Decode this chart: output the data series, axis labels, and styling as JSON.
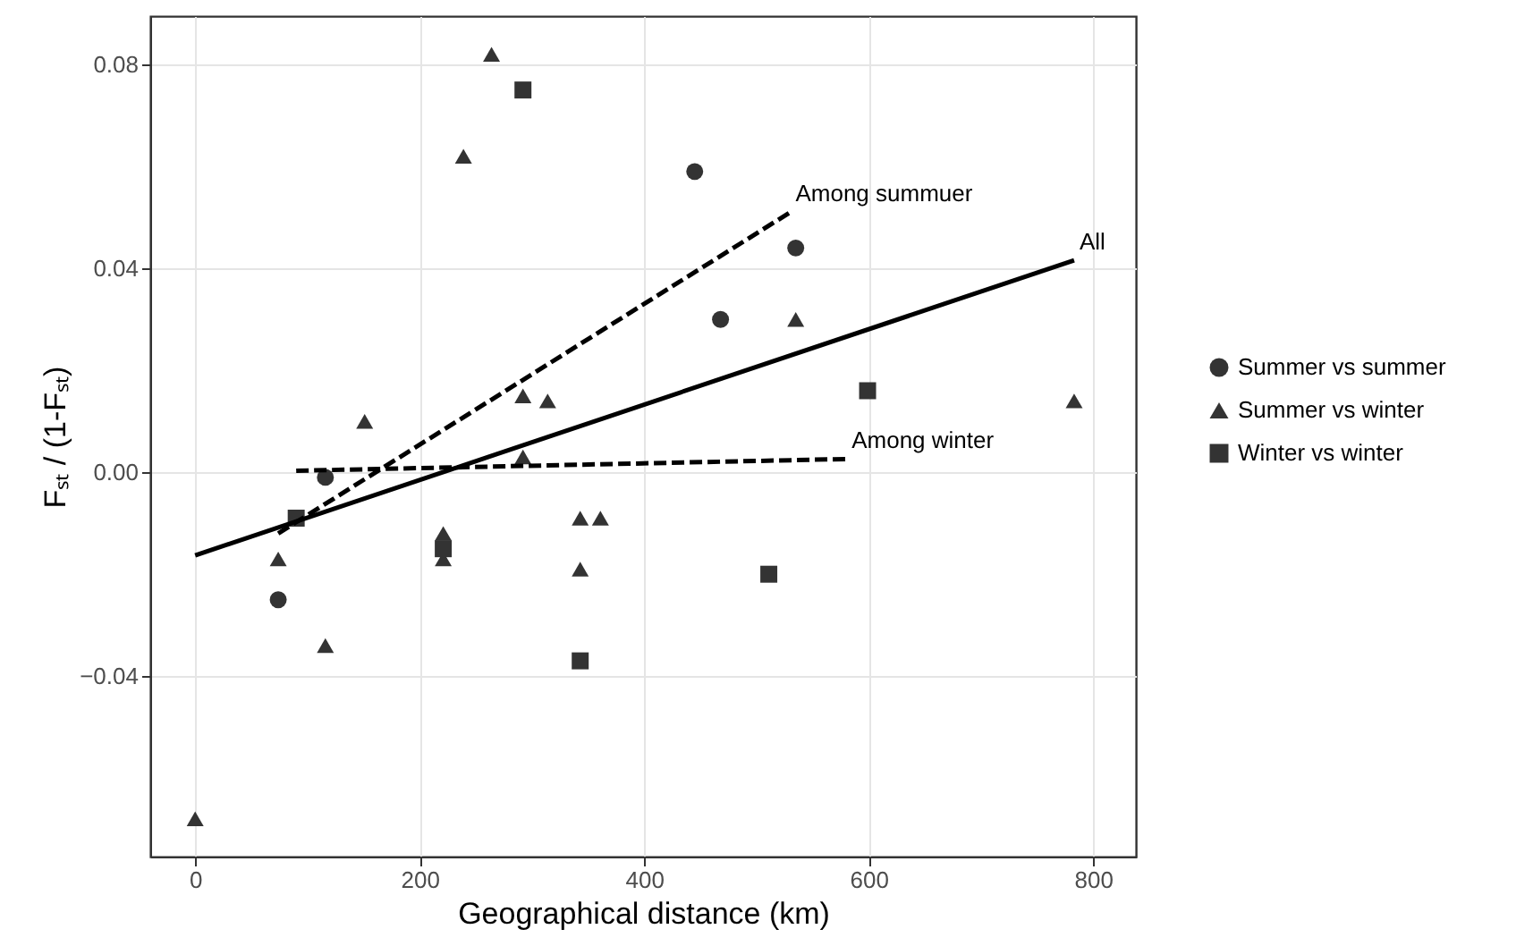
{
  "chart_data": {
    "type": "scatter",
    "xlabel": "Geographical distance (km)",
    "ylabel": "Fₛₜ / (1-Fₛₜ)",
    "xlim": [
      -40,
      838
    ],
    "xticks": [
      0,
      200,
      400,
      600,
      800
    ],
    "ylim": [
      -0.0754,
      0.0895
    ],
    "yticks": [
      -0.04,
      {
        "value": 0,
        "label": "0.00"
      },
      0.04,
      0.08
    ],
    "grid": true,
    "legend": "right",
    "series": [
      {
        "name": "Summer vs summer",
        "marker": "circle",
        "color": "#333333",
        "x": [
          445,
          535,
          468,
          116,
          74
        ],
        "values": [
          0.059,
          0.044,
          0.03,
          -0.001,
          -0.025
        ]
      },
      {
        "name": "Summer vs winter",
        "marker": "triangle",
        "color": "#333333",
        "x": [
          264,
          239,
          535,
          292,
          314,
          151,
          292,
          783,
          74,
          116,
          221,
          221,
          343,
          361,
          343,
          0
        ],
        "values": [
          0.082,
          0.062,
          0.03,
          0.015,
          0.014,
          0.01,
          0.003,
          0.014,
          -0.017,
          -0.034,
          -0.012,
          -0.017,
          -0.009,
          -0.009,
          -0.019,
          -0.068
        ]
      },
      {
        "name": "Winter vs winter",
        "marker": "square",
        "color": "#333333",
        "x": [
          292,
          599,
          90,
          221,
          343,
          511
        ],
        "values": [
          0.075,
          0.016,
          -0.009,
          -0.015,
          -0.037,
          -0.02
        ]
      },
      {
        "name": "All",
        "type": "line",
        "line_style": "solid",
        "color": "#000000",
        "x": [
          0,
          783
        ],
        "values": [
          -0.0163,
          0.0416
        ]
      },
      {
        "name": "Among summuer",
        "type": "line",
        "line_style": "dashed",
        "color": "#000000",
        "x": [
          74,
          530
        ],
        "values": [
          -0.012,
          0.051
        ]
      },
      {
        "name": "Among winter",
        "type": "line",
        "line_style": "dashed",
        "color": "#000000",
        "x": [
          90,
          580
        ],
        "values": [
          0.0003,
          0.0026
        ]
      }
    ]
  }
}
